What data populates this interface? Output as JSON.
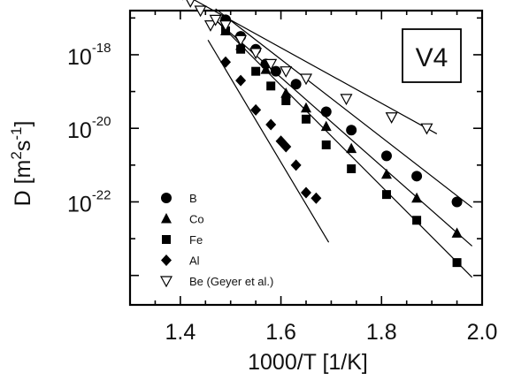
{
  "chart_data": {
    "type": "scatter",
    "title": "",
    "panel_label": "V4",
    "xlabel": "1000/T [1/K]",
    "ylabel_main": "D [m",
    "ylabel_sup1": "2",
    "ylabel_mid": "s",
    "ylabel_sup2": "-1",
    "ylabel_end": "]",
    "xlim": [
      1.3,
      2.0
    ],
    "ylim_log10": [
      -24.8,
      -16.8
    ],
    "yscale": "log",
    "x_ticks": [
      {
        "value": 1.4,
        "label": "1.4"
      },
      {
        "value": 1.6,
        "label": "1.6"
      },
      {
        "value": 1.8,
        "label": "1.8"
      },
      {
        "value": 2.0,
        "label": "2.0"
      }
    ],
    "y_ticks": [
      {
        "exp": -18,
        "base": "10",
        "sup": "-18"
      },
      {
        "exp": -20,
        "base": "10",
        "sup": "-20"
      },
      {
        "exp": -22,
        "base": "10",
        "sup": "-22"
      }
    ],
    "grid": false,
    "legend_position": "bottom-left",
    "series": [
      {
        "name": "B",
        "marker": "circle",
        "points": [
          [
            1.49,
            -17.05
          ],
          [
            1.52,
            -17.5
          ],
          [
            1.55,
            -17.85
          ],
          [
            1.57,
            -18.25
          ],
          [
            1.59,
            -18.45
          ],
          [
            1.63,
            -18.8
          ],
          [
            1.69,
            -19.55
          ],
          [
            1.74,
            -20.05
          ],
          [
            1.81,
            -20.75
          ],
          [
            1.87,
            -21.3
          ],
          [
            1.95,
            -22.0
          ]
        ],
        "fit": [
          [
            1.47,
            -16.75
          ],
          [
            1.98,
            -22.15
          ]
        ]
      },
      {
        "name": "Co",
        "marker": "triangle",
        "points": [
          [
            1.49,
            -17.35
          ],
          [
            1.52,
            -17.75
          ],
          [
            1.57,
            -18.4
          ],
          [
            1.61,
            -19.05
          ],
          [
            1.65,
            -19.45
          ],
          [
            1.69,
            -19.95
          ],
          [
            1.74,
            -20.55
          ],
          [
            1.81,
            -21.25
          ],
          [
            1.87,
            -21.9
          ],
          [
            1.95,
            -22.85
          ]
        ],
        "fit": [
          [
            1.47,
            -17.05
          ],
          [
            1.98,
            -23.2
          ]
        ]
      },
      {
        "name": "Fe",
        "marker": "square",
        "points": [
          [
            1.49,
            -17.35
          ],
          [
            1.52,
            -17.85
          ],
          [
            1.55,
            -18.45
          ],
          [
            1.58,
            -18.85
          ],
          [
            1.61,
            -19.25
          ],
          [
            1.65,
            -19.75
          ],
          [
            1.69,
            -20.45
          ],
          [
            1.74,
            -21.1
          ],
          [
            1.81,
            -21.8
          ],
          [
            1.87,
            -22.5
          ],
          [
            1.95,
            -23.65
          ]
        ],
        "fit": [
          [
            1.47,
            -17.05
          ],
          [
            1.98,
            -24.05
          ]
        ]
      },
      {
        "name": "Al",
        "marker": "diamond",
        "points": [
          [
            1.49,
            -18.2
          ],
          [
            1.52,
            -18.7
          ],
          [
            1.55,
            -19.5
          ],
          [
            1.58,
            -19.9
          ],
          [
            1.6,
            -20.35
          ],
          [
            1.61,
            -20.5
          ],
          [
            1.63,
            -21.0
          ],
          [
            1.65,
            -21.75
          ],
          [
            1.67,
            -21.9
          ]
        ],
        "fit": [
          [
            1.455,
            -17.6
          ],
          [
            1.695,
            -23.1
          ]
        ]
      },
      {
        "name": "Be (Geyer et al.)",
        "marker": "triangle-down-open",
        "points": [
          [
            1.405,
            -16.35
          ],
          [
            1.42,
            -16.55
          ],
          [
            1.44,
            -16.8
          ],
          [
            1.46,
            -17.2
          ],
          [
            1.47,
            -17.05
          ],
          [
            1.49,
            -17.2
          ],
          [
            1.52,
            -17.6
          ],
          [
            1.55,
            -17.95
          ],
          [
            1.58,
            -18.25
          ],
          [
            1.61,
            -18.45
          ],
          [
            1.65,
            -18.65
          ],
          [
            1.73,
            -19.2
          ],
          [
            1.82,
            -19.7
          ],
          [
            1.89,
            -20.0
          ]
        ],
        "fit": [
          [
            1.4,
            -16.3
          ],
          [
            1.91,
            -20.15
          ]
        ]
      }
    ]
  }
}
